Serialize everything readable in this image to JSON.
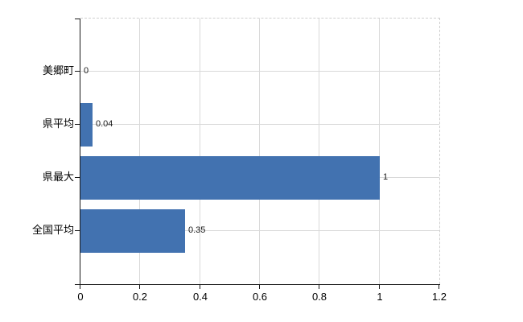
{
  "chart_data": {
    "type": "bar",
    "orientation": "horizontal",
    "title": "",
    "categories": [
      "美郷町",
      "県平均",
      "県最大",
      "全国平均"
    ],
    "values": [
      0,
      0.04,
      1,
      0.35
    ],
    "value_labels": [
      "0",
      "0.04",
      "1",
      "0.35"
    ],
    "x_ticks": [
      0,
      0.2,
      0.4,
      0.6,
      0.8,
      1,
      1.2
    ],
    "x_tick_labels": [
      "0",
      "0.2",
      "0.4",
      "0.6",
      "0.8",
      "1",
      "1.2"
    ],
    "xlim": [
      0,
      1.2
    ],
    "grid": true,
    "legend": false,
    "colors": {
      "bar": "#4272b0",
      "grid": "#d9d9d9",
      "dashed_border": "#cfcfcf",
      "axis": "#1a1a1a",
      "text": "#000000",
      "background": "#ffffff"
    }
  }
}
